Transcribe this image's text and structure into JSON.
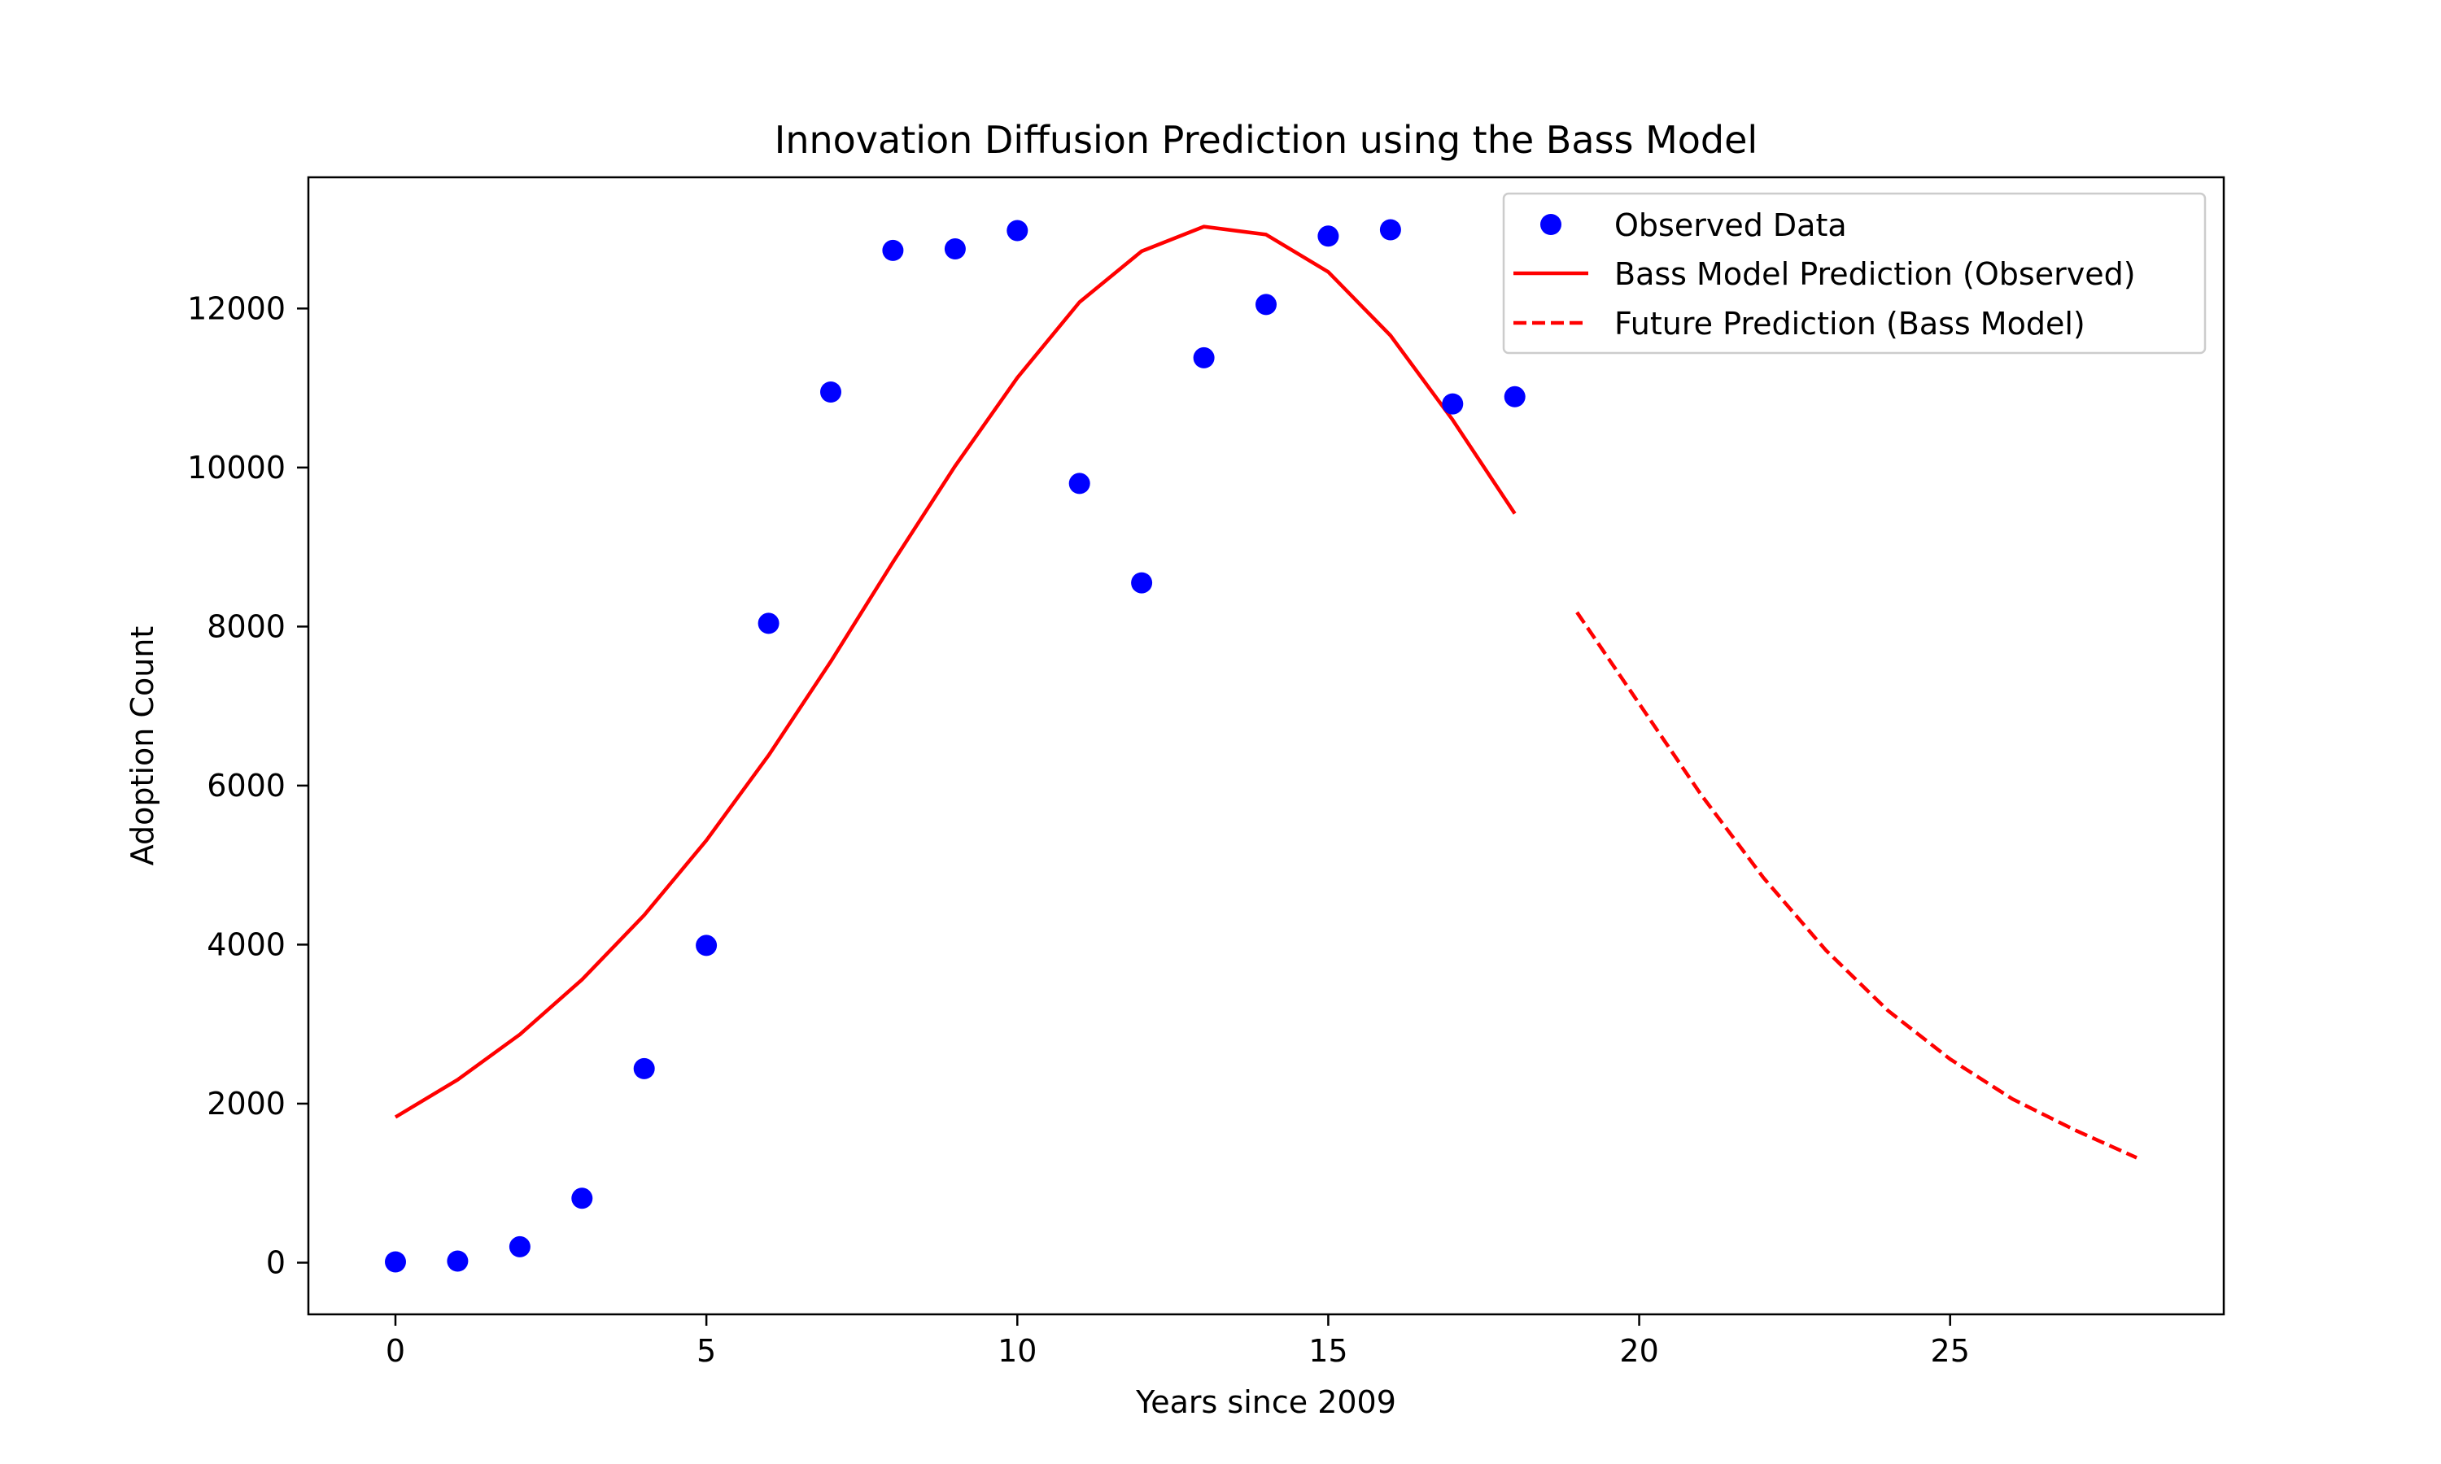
{
  "chart_data": {
    "type": "line",
    "title": "Innovation Diffusion Prediction using the Bass Model",
    "xlabel": "Years since 2009",
    "ylabel": "Adoption Count",
    "xlim": [
      -1.4,
      29.4
    ],
    "ylim": [
      -650,
      13650
    ],
    "xticks": [
      0,
      5,
      10,
      15,
      20,
      25
    ],
    "xtick_labels": [
      "0",
      "5",
      "10",
      "15",
      "20",
      "25"
    ],
    "yticks": [
      0,
      2000,
      4000,
      6000,
      8000,
      10000,
      12000
    ],
    "ytick_labels": [
      "0",
      "2000",
      "4000",
      "6000",
      "8000",
      "10000",
      "12000"
    ],
    "grid": false,
    "legend_position": "upper right",
    "series": [
      {
        "name": "Observed Data",
        "kind": "scatter",
        "color": "#0000ff",
        "x": [
          0,
          1,
          2,
          3,
          4,
          5,
          6,
          7,
          8,
          9,
          10,
          11,
          12,
          13,
          14,
          15,
          16,
          17,
          18
        ],
        "y": [
          10,
          20,
          200,
          810,
          2440,
          3990,
          8040,
          10950,
          12730,
          12750,
          12980,
          9800,
          8550,
          11380,
          12050,
          12910,
          12990,
          10800,
          10890
        ]
      },
      {
        "name": "Bass Model Prediction (Observed)",
        "kind": "line",
        "style": "solid",
        "color": "#ff0000",
        "x": [
          0,
          1,
          2,
          3,
          4,
          5,
          6,
          7,
          8,
          9,
          10,
          11,
          12,
          13,
          14,
          15,
          16,
          17,
          18
        ],
        "y": [
          1830,
          2300,
          2870,
          3560,
          4370,
          5310,
          6380,
          7560,
          8810,
          10020,
          11130,
          12080,
          12720,
          13030,
          12930,
          12460,
          11660,
          10600,
          9420
        ]
      },
      {
        "name": "Future Prediction (Bass Model)",
        "kind": "line",
        "style": "dashed",
        "color": "#ff0000",
        "x": [
          19,
          20,
          21,
          22,
          23,
          24,
          25,
          26,
          27,
          28
        ],
        "y": [
          8180,
          7030,
          5880,
          4840,
          3930,
          3170,
          2560,
          2060,
          1670,
          1320
        ]
      }
    ]
  }
}
